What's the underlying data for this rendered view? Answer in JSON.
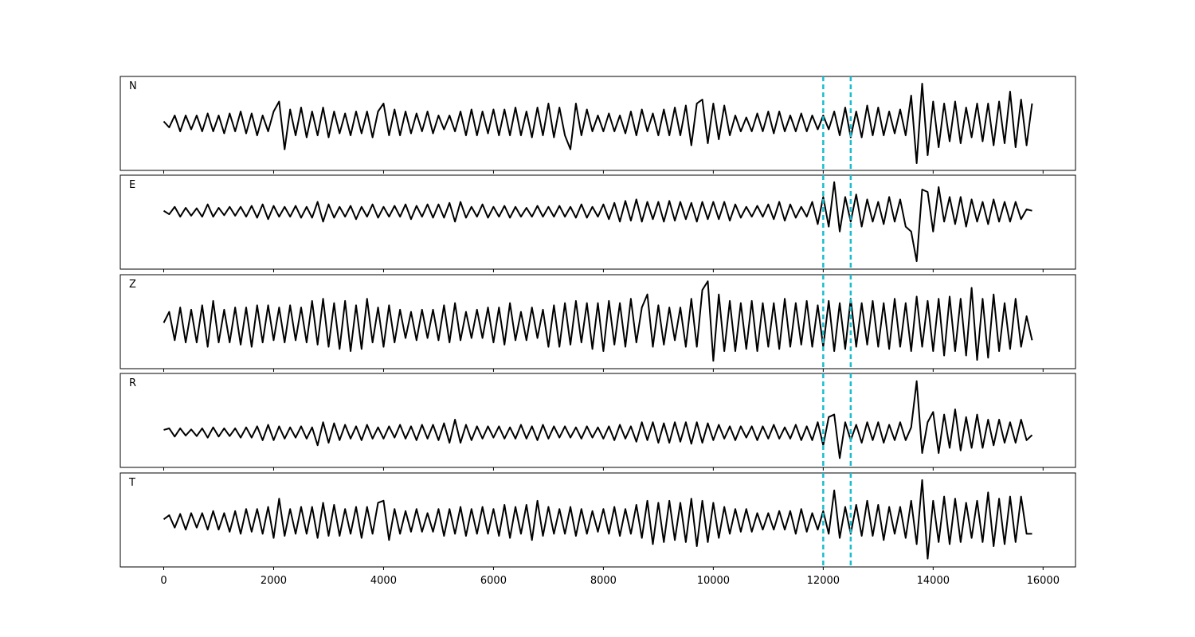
{
  "chart_data": {
    "type": "line",
    "x": [
      0,
      100,
      200,
      300,
      400,
      500,
      600,
      700,
      800,
      900,
      1000,
      1100,
      1200,
      1300,
      1400,
      1500,
      1600,
      1700,
      1800,
      1900,
      2000,
      2100,
      2200,
      2300,
      2400,
      2500,
      2600,
      2700,
      2800,
      2900,
      3000,
      3100,
      3200,
      3300,
      3400,
      3500,
      3600,
      3700,
      3800,
      3900,
      4000,
      4100,
      4200,
      4300,
      4400,
      4500,
      4600,
      4700,
      4800,
      4900,
      5000,
      5100,
      5200,
      5300,
      5400,
      5500,
      5600,
      5700,
      5800,
      5900,
      6000,
      6100,
      6200,
      6300,
      6400,
      6500,
      6600,
      6700,
      6800,
      6900,
      7000,
      7100,
      7200,
      7300,
      7400,
      7500,
      7600,
      7700,
      7800,
      7900,
      8000,
      8100,
      8200,
      8300,
      8400,
      8500,
      8600,
      8700,
      8800,
      8900,
      9000,
      9100,
      9200,
      9300,
      9400,
      9500,
      9600,
      9700,
      9800,
      9900,
      10000,
      10100,
      10200,
      10300,
      10400,
      10500,
      10600,
      10700,
      10800,
      10900,
      11000,
      11100,
      11200,
      11300,
      11400,
      11500,
      11600,
      11700,
      11800,
      11900,
      12000,
      12100,
      12200,
      12300,
      12400,
      12500,
      12600,
      12700,
      12800,
      12900,
      13000,
      13100,
      13200,
      13300,
      13400,
      13500,
      13600,
      13700,
      13800,
      13900,
      14000,
      14100,
      14200,
      14300,
      14400,
      14500,
      14600,
      14700,
      14800,
      14900,
      15000,
      15100,
      15200,
      15300,
      15400,
      15500,
      15600,
      15700,
      15800
    ],
    "xlim": [
      -790,
      16590
    ],
    "xticks": [
      0,
      2000,
      4000,
      6000,
      8000,
      10000,
      12000,
      14000,
      16000
    ],
    "vlines": {
      "values": [
        12000,
        12500
      ],
      "color": "#17becf"
    },
    "series": [
      {
        "name": "N",
        "color": "#000000",
        "ylim": [
          -1.18,
          1.18
        ],
        "values": [
          0.05,
          -0.1,
          0.2,
          -0.2,
          0.2,
          -0.15,
          0.2,
          -0.2,
          0.25,
          -0.2,
          0.2,
          -0.25,
          0.25,
          -0.2,
          0.3,
          -0.25,
          0.25,
          -0.3,
          0.2,
          -0.2,
          0.3,
          0.55,
          -0.65,
          0.35,
          -0.3,
          0.4,
          -0.35,
          0.3,
          -0.3,
          0.4,
          -0.35,
          0.3,
          -0.25,
          0.25,
          -0.3,
          0.3,
          -0.25,
          0.3,
          -0.35,
          0.3,
          0.5,
          -0.3,
          0.35,
          -0.3,
          0.3,
          -0.25,
          0.25,
          -0.2,
          0.3,
          -0.25,
          0.2,
          -0.15,
          0.2,
          -0.2,
          0.3,
          -0.3,
          0.35,
          -0.3,
          0.3,
          -0.25,
          0.35,
          -0.3,
          0.35,
          -0.3,
          0.4,
          -0.3,
          0.3,
          -0.35,
          0.4,
          -0.3,
          0.5,
          -0.35,
          0.4,
          -0.3,
          -0.65,
          0.5,
          -0.3,
          0.35,
          -0.2,
          0.2,
          -0.2,
          0.25,
          -0.2,
          0.2,
          -0.25,
          0.3,
          -0.3,
          0.35,
          -0.2,
          0.25,
          -0.3,
          0.35,
          -0.3,
          0.4,
          -0.3,
          0.45,
          -0.55,
          0.5,
          0.6,
          -0.5,
          0.5,
          -0.4,
          0.45,
          -0.3,
          0.2,
          -0.2,
          0.15,
          -0.2,
          0.25,
          -0.2,
          0.3,
          -0.25,
          0.3,
          -0.2,
          0.2,
          -0.2,
          0.25,
          -0.2,
          0.2,
          -0.15,
          0.2,
          -0.15,
          0.3,
          -0.3,
          0.4,
          -0.35,
          0.3,
          -0.35,
          0.45,
          -0.3,
          0.4,
          -0.3,
          0.3,
          -0.25,
          0.35,
          -0.3,
          0.7,
          -1.0,
          1.0,
          -0.8,
          0.55,
          -0.6,
          0.5,
          -0.45,
          0.55,
          -0.5,
          0.4,
          -0.35,
          0.5,
          -0.45,
          0.5,
          -0.55,
          0.55,
          -0.5,
          0.8,
          -0.6,
          0.6,
          -0.55,
          0.5
        ]
      },
      {
        "name": "E",
        "color": "#000000",
        "ylim": [
          -1.16,
          0.74
        ],
        "values": [
          0.02,
          -0.05,
          0.1,
          -0.1,
          0.08,
          -0.08,
          0.07,
          -0.1,
          0.15,
          -0.1,
          0.08,
          -0.07,
          0.1,
          -0.08,
          0.1,
          -0.1,
          0.12,
          -0.12,
          0.15,
          -0.15,
          0.12,
          -0.1,
          0.1,
          -0.1,
          0.12,
          -0.12,
          0.1,
          -0.12,
          0.2,
          -0.2,
          0.15,
          -0.12,
          0.1,
          -0.1,
          0.12,
          -0.15,
          0.1,
          -0.1,
          0.15,
          -0.12,
          0.1,
          -0.1,
          0.12,
          -0.1,
          0.15,
          -0.15,
          0.12,
          -0.1,
          0.15,
          -0.12,
          0.15,
          -0.12,
          0.18,
          -0.2,
          0.2,
          -0.12,
          0.1,
          -0.1,
          0.15,
          -0.12,
          0.1,
          -0.1,
          0.12,
          -0.12,
          0.1,
          -0.1,
          0.08,
          -0.1,
          0.12,
          -0.1,
          0.1,
          -0.1,
          0.12,
          -0.1,
          0.1,
          -0.12,
          0.15,
          -0.12,
          0.1,
          -0.1,
          0.15,
          -0.15,
          0.18,
          -0.2,
          0.22,
          -0.18,
          0.25,
          -0.2,
          0.2,
          -0.15,
          0.2,
          -0.2,
          0.22,
          -0.18,
          0.2,
          -0.15,
          0.18,
          -0.2,
          0.2,
          -0.15,
          0.2,
          -0.15,
          0.2,
          -0.18,
          0.15,
          -0.12,
          0.1,
          -0.1,
          0.12,
          -0.1,
          0.15,
          -0.15,
          0.2,
          -0.18,
          0.15,
          -0.12,
          0.1,
          -0.1,
          0.2,
          -0.25,
          0.3,
          -0.3,
          0.6,
          -0.4,
          0.3,
          -0.2,
          0.35,
          -0.3,
          0.25,
          -0.2,
          0.2,
          -0.25,
          0.3,
          -0.2,
          0.25,
          -0.3,
          -0.4,
          -1.0,
          0.45,
          0.4,
          -0.4,
          0.5,
          -0.2,
          0.3,
          -0.25,
          0.3,
          -0.3,
          0.25,
          -0.2,
          0.2,
          -0.25,
          0.25,
          -0.2,
          0.2,
          -0.2,
          0.2,
          -0.15,
          0.05,
          0.02
        ]
      },
      {
        "name": "Z",
        "color": "#000000",
        "ylim": [
          -1.0,
          1.15
        ],
        "values": [
          0.05,
          0.3,
          -0.35,
          0.4,
          -0.4,
          0.35,
          -0.4,
          0.45,
          -0.5,
          0.55,
          -0.4,
          0.35,
          -0.4,
          0.4,
          -0.45,
          0.4,
          -0.5,
          0.45,
          -0.4,
          0.45,
          -0.35,
          0.4,
          -0.4,
          0.45,
          -0.35,
          0.4,
          -0.4,
          0.55,
          -0.45,
          0.6,
          -0.5,
          0.5,
          -0.55,
          0.55,
          -0.6,
          0.45,
          -0.55,
          0.6,
          -0.4,
          0.4,
          -0.5,
          0.45,
          -0.4,
          0.35,
          -0.3,
          0.3,
          -0.35,
          0.35,
          -0.3,
          0.35,
          -0.35,
          0.45,
          -0.4,
          0.5,
          -0.35,
          0.3,
          -0.3,
          0.35,
          -0.3,
          0.4,
          -0.4,
          0.4,
          -0.45,
          0.5,
          -0.35,
          0.3,
          -0.35,
          0.4,
          -0.3,
          0.35,
          -0.5,
          0.45,
          -0.5,
          0.5,
          -0.45,
          0.55,
          -0.4,
          0.5,
          -0.55,
          0.5,
          -0.6,
          0.55,
          -0.45,
          0.5,
          -0.5,
          0.6,
          -0.4,
          0.4,
          0.7,
          -0.5,
          0.45,
          -0.45,
          0.4,
          -0.35,
          0.4,
          -0.5,
          0.6,
          -0.5,
          0.8,
          1.0,
          -0.82,
          0.7,
          -0.6,
          0.55,
          -0.6,
          0.5,
          -0.55,
          0.55,
          -0.6,
          0.5,
          -0.5,
          0.5,
          -0.55,
          0.6,
          -0.5,
          0.5,
          -0.45,
          0.55,
          -0.5,
          0.45,
          -0.5,
          0.55,
          -0.6,
          0.5,
          -0.55,
          0.6,
          -0.5,
          0.5,
          -0.45,
          0.55,
          -0.5,
          0.5,
          -0.55,
          0.6,
          -0.5,
          0.5,
          -0.6,
          0.65,
          -0.5,
          0.55,
          -0.6,
          0.6,
          -0.7,
          0.65,
          -0.6,
          0.6,
          -0.7,
          0.85,
          -0.8,
          0.6,
          -0.75,
          0.7,
          -0.6,
          0.5,
          -0.55,
          0.6,
          -0.5,
          0.2,
          -0.35
        ]
      },
      {
        "name": "R",
        "color": "#000000",
        "ylim": [
          -0.68,
          1.15
        ],
        "values": [
          0.05,
          0.08,
          -0.08,
          0.08,
          -0.06,
          0.06,
          -0.07,
          0.08,
          -0.1,
          0.1,
          -0.08,
          0.08,
          -0.07,
          0.08,
          -0.1,
          0.1,
          -0.1,
          0.12,
          -0.15,
          0.15,
          -0.15,
          0.12,
          -0.12,
          0.1,
          -0.1,
          0.12,
          -0.12,
          0.1,
          -0.25,
          0.2,
          -0.2,
          0.18,
          -0.15,
          0.15,
          -0.12,
          0.12,
          -0.15,
          0.15,
          -0.12,
          0.1,
          -0.12,
          0.12,
          -0.1,
          0.15,
          -0.12,
          0.12,
          -0.15,
          0.15,
          -0.12,
          0.15,
          -0.15,
          0.18,
          -0.2,
          0.25,
          -0.2,
          0.15,
          -0.15,
          0.12,
          -0.12,
          0.12,
          -0.1,
          0.12,
          -0.12,
          0.1,
          -0.12,
          0.15,
          -0.12,
          0.12,
          -0.15,
          0.15,
          -0.12,
          0.12,
          -0.1,
          0.12,
          -0.1,
          0.1,
          -0.12,
          0.12,
          -0.1,
          0.1,
          -0.12,
          0.12,
          -0.15,
          0.15,
          -0.12,
          0.12,
          -0.18,
          0.2,
          -0.15,
          0.2,
          -0.2,
          0.18,
          -0.2,
          0.2,
          -0.18,
          0.2,
          -0.22,
          0.2,
          -0.2,
          0.18,
          -0.15,
          0.15,
          -0.12,
          0.12,
          -0.15,
          0.12,
          -0.1,
          0.12,
          -0.15,
          0.12,
          -0.12,
          0.15,
          -0.12,
          0.1,
          -0.12,
          0.15,
          -0.15,
          0.12,
          -0.15,
          0.2,
          -0.25,
          0.3,
          0.35,
          -0.5,
          0.2,
          -0.15,
          0.15,
          -0.2,
          0.2,
          -0.15,
          0.2,
          -0.2,
          0.15,
          -0.15,
          0.2,
          -0.15,
          0.1,
          1.0,
          -0.4,
          0.2,
          0.4,
          -0.4,
          0.35,
          -0.3,
          0.45,
          -0.35,
          0.3,
          -0.3,
          0.35,
          -0.3,
          0.25,
          -0.25,
          0.25,
          -0.2,
          0.2,
          -0.2,
          0.25,
          -0.15,
          -0.05
        ]
      },
      {
        "name": "T",
        "color": "#000000",
        "ylim": [
          -1.1,
          1.17
        ],
        "values": [
          0.05,
          0.15,
          -0.15,
          0.18,
          -0.2,
          0.2,
          -0.15,
          0.2,
          -0.2,
          0.25,
          -0.2,
          0.2,
          -0.25,
          0.25,
          -0.3,
          0.3,
          -0.25,
          0.3,
          -0.3,
          0.35,
          -0.4,
          0.55,
          -0.35,
          0.3,
          -0.3,
          0.35,
          -0.3,
          0.35,
          -0.4,
          0.45,
          -0.35,
          0.4,
          -0.35,
          0.3,
          -0.3,
          0.35,
          -0.4,
          0.35,
          -0.3,
          0.45,
          0.5,
          -0.45,
          0.3,
          -0.3,
          0.25,
          -0.25,
          0.3,
          -0.25,
          0.2,
          -0.25,
          0.3,
          -0.35,
          0.3,
          -0.3,
          0.35,
          -0.35,
          0.3,
          -0.3,
          0.35,
          -0.3,
          0.3,
          -0.35,
          0.4,
          -0.4,
          0.35,
          -0.3,
          0.4,
          -0.45,
          0.5,
          -0.35,
          0.35,
          -0.3,
          0.3,
          -0.3,
          0.35,
          -0.35,
          0.3,
          -0.3,
          0.25,
          -0.25,
          0.3,
          -0.3,
          0.35,
          -0.35,
          0.3,
          -0.3,
          0.4,
          -0.4,
          0.5,
          -0.55,
          0.45,
          -0.5,
          0.5,
          -0.45,
          0.45,
          -0.5,
          0.55,
          -0.6,
          0.5,
          -0.5,
          0.45,
          -0.4,
          0.35,
          -0.3,
          0.3,
          -0.25,
          0.3,
          -0.25,
          0.2,
          -0.2,
          0.2,
          -0.2,
          0.25,
          -0.2,
          0.25,
          -0.3,
          0.3,
          -0.25,
          0.2,
          -0.2,
          0.25,
          -0.3,
          0.75,
          -0.4,
          0.35,
          -0.3,
          0.4,
          -0.35,
          0.5,
          -0.35,
          0.4,
          -0.45,
          0.35,
          -0.3,
          0.35,
          -0.4,
          0.5,
          -0.55,
          1.0,
          -0.9,
          0.5,
          -0.5,
          0.6,
          -0.55,
          0.55,
          -0.5,
          0.45,
          -0.4,
          0.5,
          -0.5,
          0.7,
          -0.6,
          0.55,
          -0.55,
          0.6,
          -0.5,
          0.6,
          -0.3,
          -0.3
        ]
      }
    ]
  }
}
